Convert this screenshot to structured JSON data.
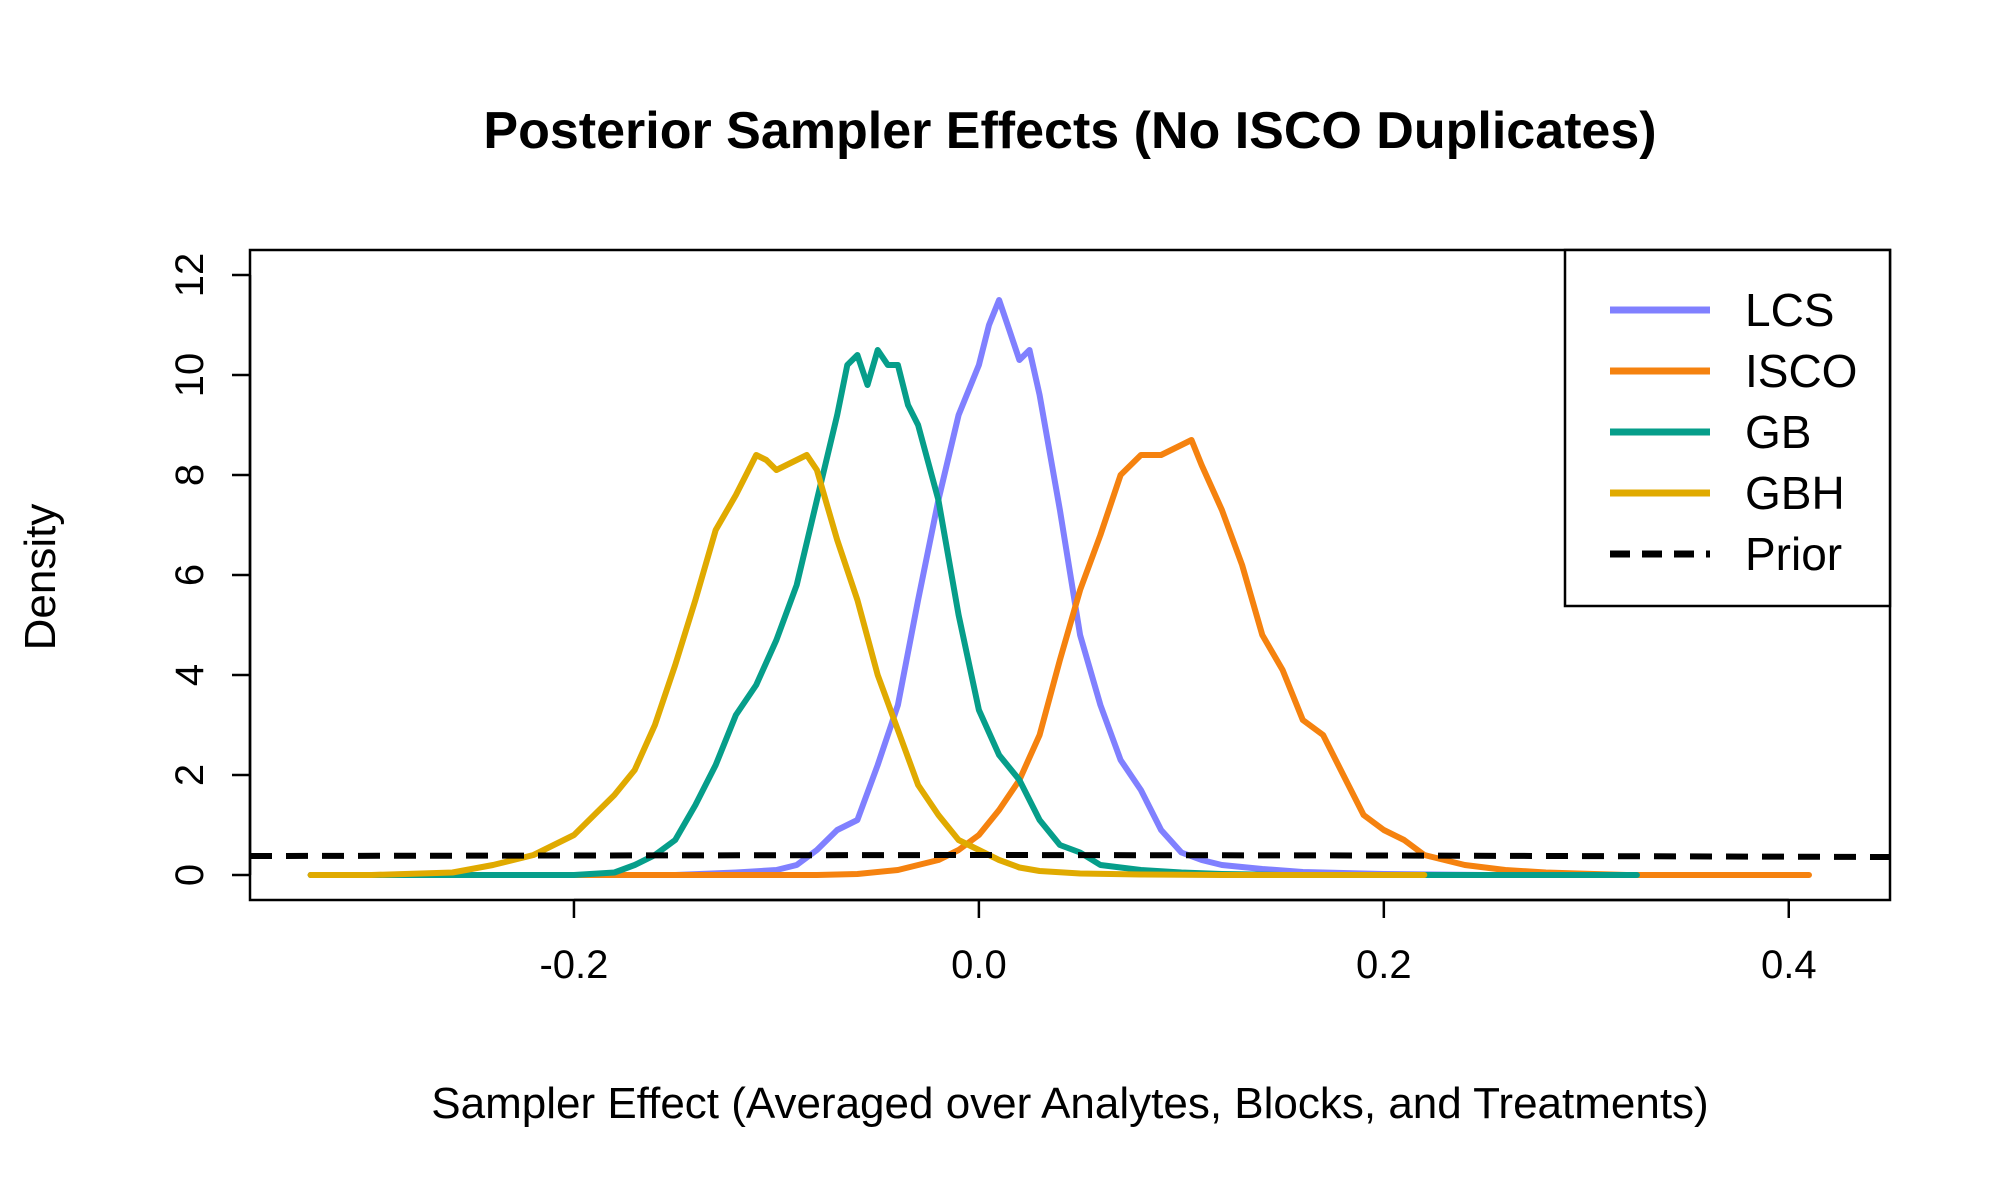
{
  "chart_data": {
    "type": "line",
    "title": "Posterior Sampler Effects (No ISCO Duplicates)",
    "xlabel": "Sampler Effect (Averaged over Analytes, Blocks, and Treatments)",
    "ylabel": "Density",
    "xlim": [
      -0.36,
      0.45
    ],
    "ylim": [
      -0.5,
      12.5
    ],
    "x_ticks": [
      -0.2,
      0.0,
      0.2,
      0.4
    ],
    "x_tick_labels": [
      "-0.2",
      "0.0",
      "0.2",
      "0.4"
    ],
    "y_ticks": [
      0,
      2,
      4,
      6,
      8,
      10,
      12
    ],
    "y_tick_labels": [
      "0",
      "2",
      "4",
      "6",
      "8",
      "10",
      "12"
    ],
    "grid": false,
    "legend_position": "top-right",
    "series": [
      {
        "name": "LCS",
        "color": "#8080ff",
        "style": "solid",
        "x": [
          -0.33,
          -0.2,
          -0.15,
          -0.12,
          -0.1,
          -0.09,
          -0.08,
          -0.07,
          -0.06,
          -0.05,
          -0.04,
          -0.03,
          -0.02,
          -0.01,
          0.0,
          0.005,
          0.01,
          0.015,
          0.02,
          0.025,
          0.03,
          0.04,
          0.05,
          0.06,
          0.07,
          0.08,
          0.09,
          0.1,
          0.11,
          0.12,
          0.14,
          0.16,
          0.2,
          0.25,
          0.33
        ],
        "y": [
          0,
          0,
          0,
          0.05,
          0.1,
          0.2,
          0.5,
          0.9,
          1.1,
          2.2,
          3.4,
          5.5,
          7.5,
          9.2,
          10.2,
          11.0,
          11.5,
          10.9,
          10.3,
          10.5,
          9.6,
          7.3,
          4.8,
          3.4,
          2.3,
          1.7,
          0.9,
          0.45,
          0.3,
          0.2,
          0.12,
          0.06,
          0.02,
          0,
          0
        ]
      },
      {
        "name": "ISCO",
        "color": "#f5820f",
        "style": "solid",
        "x": [
          -0.33,
          -0.1,
          -0.08,
          -0.06,
          -0.04,
          -0.02,
          -0.01,
          0.0,
          0.01,
          0.02,
          0.03,
          0.04,
          0.05,
          0.06,
          0.07,
          0.08,
          0.09,
          0.1,
          0.105,
          0.11,
          0.12,
          0.13,
          0.14,
          0.15,
          0.16,
          0.17,
          0.18,
          0.19,
          0.2,
          0.21,
          0.22,
          0.24,
          0.26,
          0.28,
          0.32,
          0.41
        ],
        "y": [
          0,
          0,
          0,
          0.02,
          0.1,
          0.3,
          0.5,
          0.8,
          1.3,
          1.9,
          2.8,
          4.3,
          5.7,
          6.8,
          8.0,
          8.4,
          8.4,
          8.6,
          8.7,
          8.2,
          7.3,
          6.2,
          4.8,
          4.1,
          3.1,
          2.8,
          2.0,
          1.2,
          0.9,
          0.7,
          0.4,
          0.2,
          0.1,
          0.05,
          0,
          0
        ]
      },
      {
        "name": "GB",
        "color": "#069e8a",
        "style": "solid",
        "x": [
          -0.33,
          -0.25,
          -0.2,
          -0.18,
          -0.17,
          -0.16,
          -0.15,
          -0.14,
          -0.13,
          -0.12,
          -0.11,
          -0.1,
          -0.09,
          -0.08,
          -0.07,
          -0.065,
          -0.06,
          -0.055,
          -0.05,
          -0.045,
          -0.04,
          -0.035,
          -0.03,
          -0.02,
          -0.01,
          0.0,
          0.01,
          0.02,
          0.03,
          0.04,
          0.05,
          0.06,
          0.08,
          0.1,
          0.12,
          0.15,
          0.2,
          0.325
        ],
        "y": [
          0,
          0,
          0,
          0.05,
          0.2,
          0.4,
          0.7,
          1.4,
          2.2,
          3.2,
          3.8,
          4.7,
          5.8,
          7.5,
          9.2,
          10.2,
          10.4,
          9.8,
          10.5,
          10.2,
          10.2,
          9.4,
          9.0,
          7.5,
          5.2,
          3.3,
          2.4,
          1.9,
          1.1,
          0.6,
          0.45,
          0.2,
          0.1,
          0.05,
          0.02,
          0,
          0,
          0
        ]
      },
      {
        "name": "GBH",
        "color": "#e0aa00",
        "style": "solid",
        "x": [
          -0.33,
          -0.3,
          -0.26,
          -0.24,
          -0.22,
          -0.2,
          -0.19,
          -0.18,
          -0.17,
          -0.16,
          -0.15,
          -0.14,
          -0.13,
          -0.12,
          -0.11,
          -0.105,
          -0.1,
          -0.09,
          -0.085,
          -0.08,
          -0.075,
          -0.07,
          -0.06,
          -0.05,
          -0.04,
          -0.03,
          -0.02,
          -0.01,
          0.0,
          0.01,
          0.02,
          0.03,
          0.05,
          0.08,
          0.12,
          0.22
        ],
        "y": [
          0,
          0,
          0.05,
          0.2,
          0.4,
          0.8,
          1.2,
          1.6,
          2.1,
          3.0,
          4.2,
          5.5,
          6.9,
          7.6,
          8.4,
          8.3,
          8.1,
          8.3,
          8.4,
          8.1,
          7.4,
          6.7,
          5.5,
          4.0,
          2.9,
          1.8,
          1.2,
          0.7,
          0.5,
          0.3,
          0.15,
          0.08,
          0.03,
          0.01,
          0,
          0
        ]
      },
      {
        "name": "Prior",
        "color": "#000000",
        "style": "dashed",
        "x": [
          -0.36,
          -0.2,
          0.0,
          0.2,
          0.45
        ],
        "y": [
          0.38,
          0.39,
          0.4,
          0.39,
          0.36
        ]
      }
    ]
  }
}
